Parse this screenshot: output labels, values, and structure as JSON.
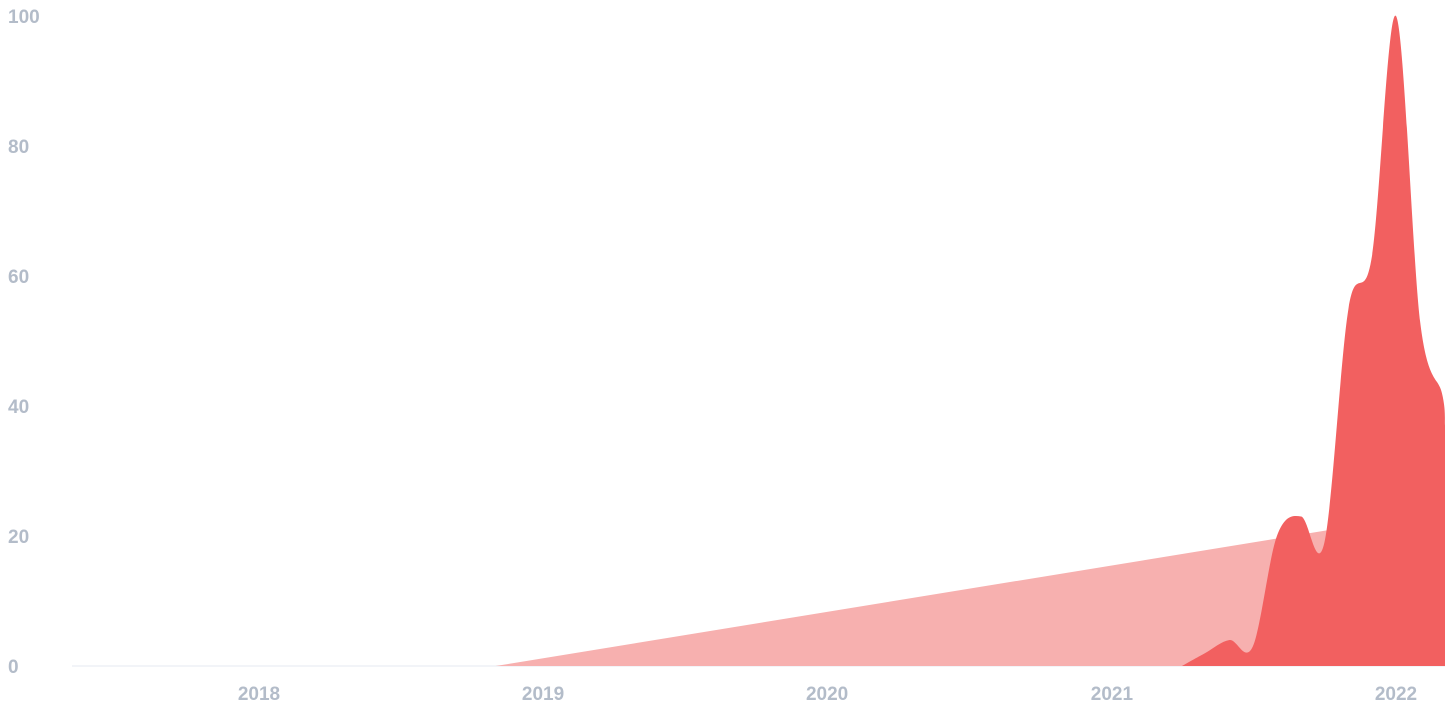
{
  "chart_data": {
    "type": "area",
    "title": "",
    "xlabel": "",
    "ylabel": "",
    "ylim": [
      0,
      100
    ],
    "y_ticks": [
      "0",
      "20",
      "40",
      "60",
      "80",
      "100"
    ],
    "x_ticks": [
      "2018",
      "2019",
      "2020",
      "2021",
      "2022"
    ],
    "grid": false,
    "legend": "none",
    "series": [
      {
        "color": "#f7b0af",
        "points": [
          {
            "x": "2018-11-01",
            "y": 0
          },
          {
            "x": "2021-12-01",
            "y": 22
          }
        ]
      },
      {
        "color": "#f26060",
        "points": [
          {
            "x": "2021-04-01",
            "y": 0
          },
          {
            "x": "2021-05-01",
            "y": 2
          },
          {
            "x": "2021-06-01",
            "y": 4
          },
          {
            "x": "2021-07-01",
            "y": 3
          },
          {
            "x": "2021-08-01",
            "y": 20
          },
          {
            "x": "2021-09-01",
            "y": 23
          },
          {
            "x": "2021-10-01",
            "y": 19
          },
          {
            "x": "2021-11-01",
            "y": 55
          },
          {
            "x": "2021-12-01",
            "y": 63
          },
          {
            "x": "2022-01-01",
            "y": 100
          },
          {
            "x": "2022-02-01",
            "y": 53
          },
          {
            "x": "2022-03-01",
            "y": 42
          },
          {
            "x": "2022-03-31",
            "y": 37
          }
        ]
      }
    ]
  }
}
